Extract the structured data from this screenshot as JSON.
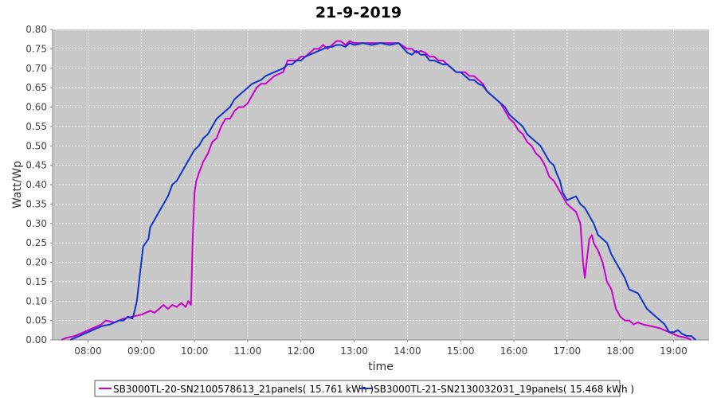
{
  "chart_data": {
    "type": "line",
    "title": "21-9-2019",
    "xlabel": "time",
    "ylabel": "Watt/Wp",
    "xlim": [
      "07:20",
      "19:40"
    ],
    "ylim": [
      0,
      0.8
    ],
    "x_ticks": [
      "08:00",
      "09:00",
      "10:00",
      "11:00",
      "12:00",
      "13:00",
      "14:00",
      "15:00",
      "16:00",
      "17:00",
      "18:00",
      "19:00"
    ],
    "y_ticks": [
      "0.00",
      "0.05",
      "0.10",
      "0.15",
      "0.20",
      "0.25",
      "0.30",
      "0.35",
      "0.40",
      "0.45",
      "0.50",
      "0.55",
      "0.60",
      "0.65",
      "0.70",
      "0.75",
      "0.80"
    ],
    "grid": true,
    "legend_position": "bottom",
    "plot_background": "#c8c8c8",
    "series": [
      {
        "name": "SB3000TL-20-SN2100578613_21panels( 15.761 kWh )",
        "color": "#cc00cc",
        "points": [
          [
            "07:30",
            0.0
          ],
          [
            "07:35",
            0.005
          ],
          [
            "07:45",
            0.01
          ],
          [
            "07:55",
            0.02
          ],
          [
            "08:05",
            0.03
          ],
          [
            "08:15",
            0.04
          ],
          [
            "08:20",
            0.05
          ],
          [
            "08:30",
            0.045
          ],
          [
            "08:40",
            0.055
          ],
          [
            "08:50",
            0.06
          ],
          [
            "09:00",
            0.065
          ],
          [
            "09:05",
            0.07
          ],
          [
            "09:10",
            0.075
          ],
          [
            "09:15",
            0.07
          ],
          [
            "09:20",
            0.08
          ],
          [
            "09:25",
            0.09
          ],
          [
            "09:30",
            0.08
          ],
          [
            "09:35",
            0.09
          ],
          [
            "09:40",
            0.085
          ],
          [
            "09:45",
            0.095
          ],
          [
            "09:50",
            0.085
          ],
          [
            "09:53",
            0.1
          ],
          [
            "09:56",
            0.09
          ],
          [
            "09:58",
            0.26
          ],
          [
            "10:00",
            0.38
          ],
          [
            "10:02",
            0.41
          ],
          [
            "10:05",
            0.43
          ],
          [
            "10:10",
            0.46
          ],
          [
            "10:15",
            0.48
          ],
          [
            "10:20",
            0.51
          ],
          [
            "10:25",
            0.52
          ],
          [
            "10:30",
            0.55
          ],
          [
            "10:35",
            0.57
          ],
          [
            "10:40",
            0.57
          ],
          [
            "10:45",
            0.59
          ],
          [
            "10:50",
            0.6
          ],
          [
            "10:55",
            0.6
          ],
          [
            "11:00",
            0.61
          ],
          [
            "11:05",
            0.63
          ],
          [
            "11:10",
            0.65
          ],
          [
            "11:15",
            0.66
          ],
          [
            "11:20",
            0.66
          ],
          [
            "11:25",
            0.67
          ],
          [
            "11:30",
            0.68
          ],
          [
            "11:40",
            0.69
          ],
          [
            "11:45",
            0.72
          ],
          [
            "11:50",
            0.72
          ],
          [
            "11:55",
            0.72
          ],
          [
            "12:00",
            0.73
          ],
          [
            "12:05",
            0.73
          ],
          [
            "12:10",
            0.74
          ],
          [
            "12:15",
            0.75
          ],
          [
            "12:20",
            0.75
          ],
          [
            "12:25",
            0.76
          ],
          [
            "12:30",
            0.75
          ],
          [
            "12:35",
            0.76
          ],
          [
            "12:40",
            0.77
          ],
          [
            "12:45",
            0.77
          ],
          [
            "12:50",
            0.76
          ],
          [
            "12:55",
            0.77
          ],
          [
            "13:00",
            0.765
          ],
          [
            "13:10",
            0.765
          ],
          [
            "13:20",
            0.765
          ],
          [
            "13:30",
            0.765
          ],
          [
            "13:40",
            0.765
          ],
          [
            "13:50",
            0.765
          ],
          [
            "14:00",
            0.75
          ],
          [
            "14:05",
            0.75
          ],
          [
            "14:10",
            0.74
          ],
          [
            "14:15",
            0.745
          ],
          [
            "14:20",
            0.74
          ],
          [
            "14:25",
            0.73
          ],
          [
            "14:30",
            0.73
          ],
          [
            "14:35",
            0.72
          ],
          [
            "14:40",
            0.72
          ],
          [
            "14:45",
            0.71
          ],
          [
            "14:50",
            0.7
          ],
          [
            "14:55",
            0.69
          ],
          [
            "15:00",
            0.69
          ],
          [
            "15:05",
            0.69
          ],
          [
            "15:10",
            0.68
          ],
          [
            "15:15",
            0.68
          ],
          [
            "15:20",
            0.67
          ],
          [
            "15:25",
            0.66
          ],
          [
            "15:30",
            0.64
          ],
          [
            "15:35",
            0.63
          ],
          [
            "15:40",
            0.62
          ],
          [
            "15:45",
            0.61
          ],
          [
            "15:50",
            0.59
          ],
          [
            "15:55",
            0.57
          ],
          [
            "16:00",
            0.56
          ],
          [
            "16:05",
            0.54
          ],
          [
            "16:10",
            0.53
          ],
          [
            "16:15",
            0.51
          ],
          [
            "16:20",
            0.5
          ],
          [
            "16:25",
            0.48
          ],
          [
            "16:30",
            0.47
          ],
          [
            "16:35",
            0.45
          ],
          [
            "16:40",
            0.42
          ],
          [
            "16:45",
            0.41
          ],
          [
            "16:50",
            0.39
          ],
          [
            "16:55",
            0.37
          ],
          [
            "17:00",
            0.35
          ],
          [
            "17:05",
            0.34
          ],
          [
            "17:10",
            0.33
          ],
          [
            "17:15",
            0.3
          ],
          [
            "17:18",
            0.2
          ],
          [
            "17:20",
            0.16
          ],
          [
            "17:22",
            0.2
          ],
          [
            "17:25",
            0.26
          ],
          [
            "17:28",
            0.27
          ],
          [
            "17:30",
            0.25
          ],
          [
            "17:35",
            0.23
          ],
          [
            "17:40",
            0.2
          ],
          [
            "17:45",
            0.15
          ],
          [
            "17:50",
            0.13
          ],
          [
            "17:55",
            0.08
          ],
          [
            "18:00",
            0.06
          ],
          [
            "18:05",
            0.05
          ],
          [
            "18:10",
            0.05
          ],
          [
            "18:15",
            0.04
          ],
          [
            "18:20",
            0.045
          ],
          [
            "18:25",
            0.04
          ],
          [
            "18:35",
            0.035
          ],
          [
            "18:45",
            0.03
          ],
          [
            "18:55",
            0.02
          ],
          [
            "19:05",
            0.01
          ],
          [
            "19:15",
            0.005
          ],
          [
            "19:20",
            0.0
          ]
        ]
      },
      {
        "name": "SB3000TL-21-SN2130032031_19panels( 15.468 kWh )",
        "color": "#1133cc",
        "points": [
          [
            "07:40",
            0.0
          ],
          [
            "07:45",
            0.005
          ],
          [
            "07:55",
            0.015
          ],
          [
            "08:05",
            0.025
          ],
          [
            "08:15",
            0.035
          ],
          [
            "08:25",
            0.04
          ],
          [
            "08:35",
            0.05
          ],
          [
            "08:40",
            0.05
          ],
          [
            "08:45",
            0.06
          ],
          [
            "08:50",
            0.055
          ],
          [
            "08:52",
            0.07
          ],
          [
            "08:55",
            0.1
          ],
          [
            "08:58",
            0.16
          ],
          [
            "09:00",
            0.2
          ],
          [
            "09:02",
            0.24
          ],
          [
            "09:05",
            0.25
          ],
          [
            "09:08",
            0.26
          ],
          [
            "09:10",
            0.29
          ],
          [
            "09:15",
            0.31
          ],
          [
            "09:20",
            0.33
          ],
          [
            "09:25",
            0.35
          ],
          [
            "09:30",
            0.37
          ],
          [
            "09:35",
            0.4
          ],
          [
            "09:40",
            0.41
          ],
          [
            "09:45",
            0.43
          ],
          [
            "09:50",
            0.45
          ],
          [
            "09:55",
            0.47
          ],
          [
            "10:00",
            0.49
          ],
          [
            "10:05",
            0.5
          ],
          [
            "10:10",
            0.52
          ],
          [
            "10:15",
            0.53
          ],
          [
            "10:20",
            0.55
          ],
          [
            "10:25",
            0.57
          ],
          [
            "10:30",
            0.58
          ],
          [
            "10:35",
            0.59
          ],
          [
            "10:40",
            0.6
          ],
          [
            "10:45",
            0.62
          ],
          [
            "10:50",
            0.63
          ],
          [
            "10:55",
            0.64
          ],
          [
            "11:00",
            0.65
          ],
          [
            "11:05",
            0.66
          ],
          [
            "11:10",
            0.665
          ],
          [
            "11:15",
            0.67
          ],
          [
            "11:20",
            0.68
          ],
          [
            "11:25",
            0.685
          ],
          [
            "11:30",
            0.69
          ],
          [
            "11:40",
            0.7
          ],
          [
            "11:45",
            0.71
          ],
          [
            "11:50",
            0.71
          ],
          [
            "11:55",
            0.72
          ],
          [
            "12:00",
            0.72
          ],
          [
            "12:05",
            0.73
          ],
          [
            "12:10",
            0.735
          ],
          [
            "12:15",
            0.74
          ],
          [
            "12:20",
            0.745
          ],
          [
            "12:25",
            0.75
          ],
          [
            "12:30",
            0.755
          ],
          [
            "12:35",
            0.755
          ],
          [
            "12:40",
            0.76
          ],
          [
            "12:45",
            0.76
          ],
          [
            "12:50",
            0.755
          ],
          [
            "12:55",
            0.765
          ],
          [
            "13:00",
            0.76
          ],
          [
            "13:10",
            0.765
          ],
          [
            "13:20",
            0.76
          ],
          [
            "13:30",
            0.765
          ],
          [
            "13:40",
            0.76
          ],
          [
            "13:50",
            0.765
          ],
          [
            "14:00",
            0.74
          ],
          [
            "14:05",
            0.735
          ],
          [
            "14:10",
            0.745
          ],
          [
            "14:15",
            0.735
          ],
          [
            "14:20",
            0.735
          ],
          [
            "14:25",
            0.72
          ],
          [
            "14:30",
            0.72
          ],
          [
            "14:35",
            0.715
          ],
          [
            "14:40",
            0.71
          ],
          [
            "14:45",
            0.71
          ],
          [
            "14:50",
            0.7
          ],
          [
            "14:55",
            0.69
          ],
          [
            "15:00",
            0.69
          ],
          [
            "15:05",
            0.68
          ],
          [
            "15:10",
            0.67
          ],
          [
            "15:15",
            0.67
          ],
          [
            "15:20",
            0.66
          ],
          [
            "15:25",
            0.655
          ],
          [
            "15:30",
            0.64
          ],
          [
            "15:35",
            0.63
          ],
          [
            "15:40",
            0.62
          ],
          [
            "15:45",
            0.61
          ],
          [
            "15:50",
            0.6
          ],
          [
            "15:55",
            0.58
          ],
          [
            "16:00",
            0.57
          ],
          [
            "16:05",
            0.56
          ],
          [
            "16:10",
            0.55
          ],
          [
            "16:15",
            0.53
          ],
          [
            "16:20",
            0.52
          ],
          [
            "16:25",
            0.51
          ],
          [
            "16:30",
            0.5
          ],
          [
            "16:35",
            0.48
          ],
          [
            "16:40",
            0.46
          ],
          [
            "16:45",
            0.45
          ],
          [
            "16:48",
            0.43
          ],
          [
            "16:52",
            0.41
          ],
          [
            "16:55",
            0.38
          ],
          [
            "17:00",
            0.36
          ],
          [
            "17:05",
            0.365
          ],
          [
            "17:10",
            0.37
          ],
          [
            "17:15",
            0.35
          ],
          [
            "17:20",
            0.34
          ],
          [
            "17:25",
            0.32
          ],
          [
            "17:30",
            0.3
          ],
          [
            "17:35",
            0.27
          ],
          [
            "17:40",
            0.26
          ],
          [
            "17:45",
            0.25
          ],
          [
            "17:50",
            0.22
          ],
          [
            "17:55",
            0.2
          ],
          [
            "18:00",
            0.18
          ],
          [
            "18:05",
            0.16
          ],
          [
            "18:10",
            0.13
          ],
          [
            "18:15",
            0.125
          ],
          [
            "18:20",
            0.12
          ],
          [
            "18:25",
            0.1
          ],
          [
            "18:30",
            0.08
          ],
          [
            "18:35",
            0.07
          ],
          [
            "18:40",
            0.06
          ],
          [
            "18:45",
            0.05
          ],
          [
            "18:50",
            0.04
          ],
          [
            "18:55",
            0.02
          ],
          [
            "19:00",
            0.02
          ],
          [
            "19:05",
            0.025
          ],
          [
            "19:10",
            0.015
          ],
          [
            "19:15",
            0.01
          ],
          [
            "19:20",
            0.01
          ],
          [
            "19:25",
            0.0
          ]
        ]
      }
    ]
  }
}
